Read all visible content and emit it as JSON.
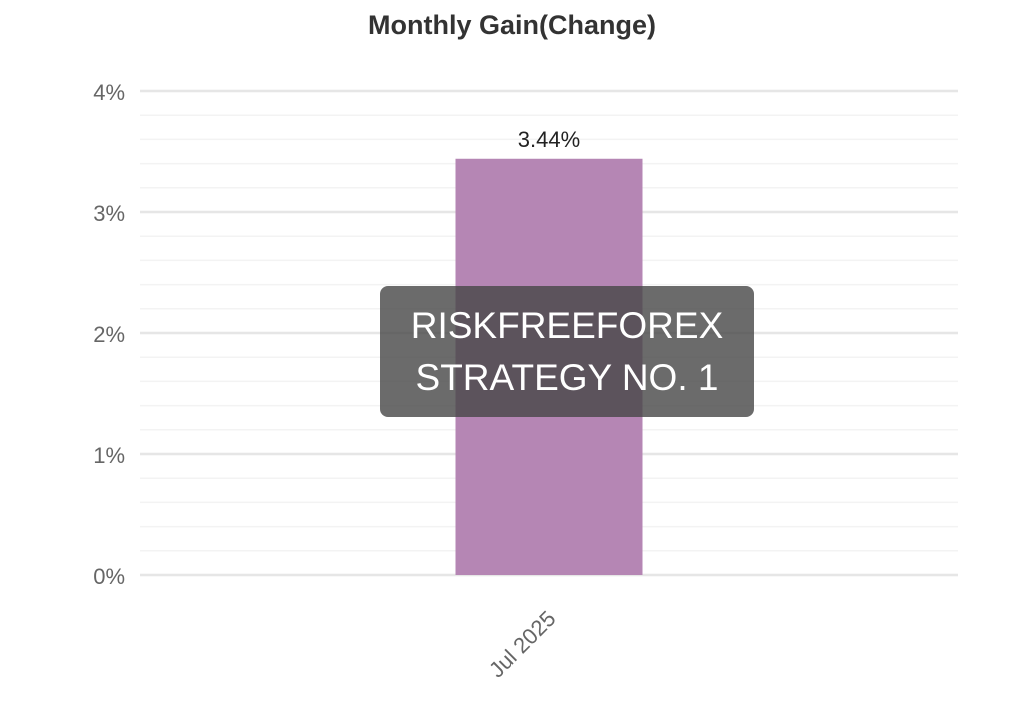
{
  "chart_data": {
    "type": "bar",
    "title": "Monthly Gain(Change)",
    "categories": [
      "Jul 2025"
    ],
    "values": [
      3.44
    ],
    "data_labels": [
      "3.44%"
    ],
    "y_ticks": [
      {
        "value": 0,
        "label": "0%"
      },
      {
        "value": 1,
        "label": "1%"
      },
      {
        "value": 2,
        "label": "2%"
      },
      {
        "value": 3,
        "label": "3%"
      },
      {
        "value": 4,
        "label": "4%"
      }
    ],
    "ylim": [
      0,
      4
    ],
    "xlabel": "",
    "ylabel": "",
    "grid": true,
    "bar_color": "#b586b4",
    "legend": "none"
  },
  "watermark": {
    "line1": "RISKFREEFOREX",
    "line2": "STRATEGY NO. 1"
  }
}
